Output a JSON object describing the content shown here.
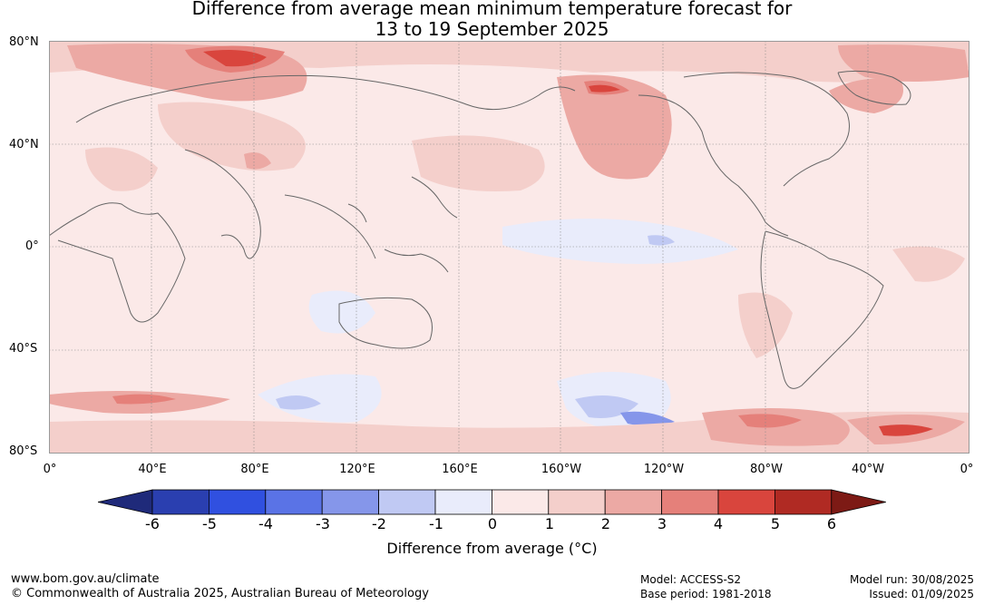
{
  "title_line1": "Difference from average mean minimum temperature forecast for",
  "title_line2": "13 to 19 September 2025",
  "lat_labels": [
    "80°N",
    "40°N",
    "0°",
    "40°S",
    "80°S"
  ],
  "lon_labels": [
    "0°",
    "40°E",
    "80°E",
    "120°E",
    "160°E",
    "160°W",
    "120°W",
    "80°W",
    "40°W",
    "0°"
  ],
  "colorbar": {
    "ticks": [
      "-6",
      "-5",
      "-4",
      "-3",
      "-2",
      "-1",
      "0",
      "1",
      "2",
      "3",
      "4",
      "5",
      "6"
    ],
    "label": "Difference from average (°C)",
    "colors": [
      "#1f2a7a",
      "#2a3fb0",
      "#3050e0",
      "#5a73e6",
      "#8596ea",
      "#c0c9f3",
      "#e9ecfb",
      "#fbe9e8",
      "#f4cfcb",
      "#eca9a4",
      "#e5807a",
      "#d9453d",
      "#b02a23",
      "#7d1a15"
    ]
  },
  "footer": {
    "website": "www.bom.gov.au/climate",
    "copyright": "© Commonwealth of Australia 2025, Australian Bureau of Meteorology",
    "model": "Model: ACCESS-S2",
    "base_period": "Base period: 1981-2018",
    "model_run": "Model run: 30/08/2025",
    "issued": "Issued: 01/09/2025"
  }
}
